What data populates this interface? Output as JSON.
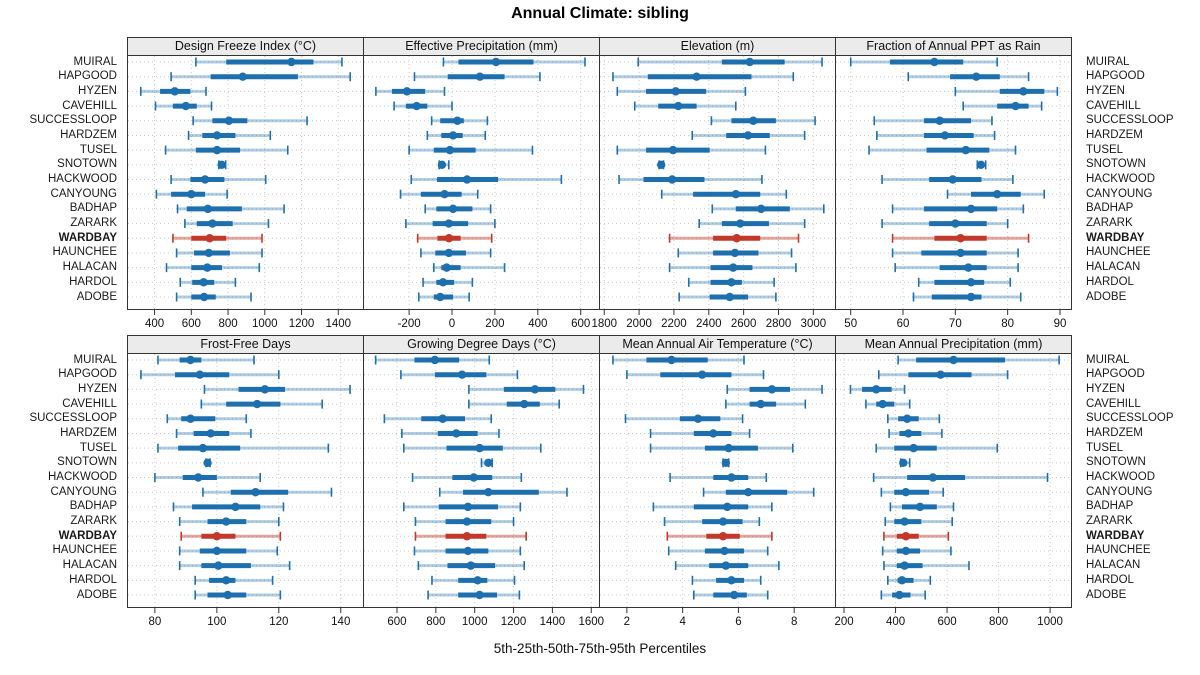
{
  "title": "Annual Climate: sibling",
  "caption": "5th-25th-50th-75th-95th Percentiles",
  "colors": {
    "blue": "#1d6fae",
    "blue_light": "rgba(29,111,174,0.35)",
    "red": "#c0392b",
    "red_light": "rgba(192,57,43,0.45)",
    "grid": "#c8c8c8",
    "panel_border": "#333333",
    "header_bg": "#ebebeb"
  },
  "chart_data": {
    "type": "table",
    "subtype": "dot-with-percentile-intervals (lattice style, 8 panels)",
    "percentiles": [
      5,
      25,
      50,
      75,
      95
    ],
    "highlight_station": "WARDBAY",
    "highlight_index": 12,
    "stations": [
      "MUIRAL",
      "HAPGOOD",
      "HYZEN",
      "CAVEHILL",
      "SUCCESSLOOP",
      "HARDZEM",
      "TUSEL",
      "SNOTOWN",
      "HACKWOOD",
      "CANYOUNG",
      "BADHAP",
      "ZARARK",
      "WARDBAY",
      "HAUNCHEE",
      "HALACAN",
      "HARDOL",
      "ADOBE"
    ],
    "panels": [
      {
        "title": "Design Freeze Index (°C)",
        "ticks": [
          400,
          600,
          800,
          1000,
          1200,
          1400
        ],
        "domain": [
          250,
          1540
        ],
        "values": [
          [
            625,
            790,
            1145,
            1265,
            1420
          ],
          [
            490,
            705,
            880,
            1180,
            1465
          ],
          [
            325,
            430,
            510,
            595,
            680
          ],
          [
            405,
            500,
            570,
            630,
            710
          ],
          [
            610,
            715,
            805,
            905,
            1230
          ],
          [
            585,
            660,
            740,
            840,
            1030
          ],
          [
            460,
            625,
            740,
            865,
            1125
          ],
          [
            750,
            758,
            765,
            773,
            787
          ],
          [
            490,
            595,
            675,
            780,
            1005
          ],
          [
            410,
            490,
            600,
            675,
            795
          ],
          [
            525,
            575,
            690,
            875,
            1105
          ],
          [
            565,
            630,
            715,
            825,
            1020
          ],
          [
            500,
            600,
            700,
            790,
            985
          ],
          [
            520,
            615,
            695,
            810,
            985
          ],
          [
            465,
            600,
            687,
            767,
            970
          ],
          [
            540,
            605,
            667,
            725,
            840
          ],
          [
            520,
            600,
            670,
            733,
            925
          ]
        ]
      },
      {
        "title": "Effective Precipitation (mm)",
        "ticks": [
          -200,
          0,
          200,
          400,
          600
        ],
        "domain": [
          -415,
          690
        ],
        "values": [
          [
            -40,
            30,
            205,
            380,
            620
          ],
          [
            -175,
            -20,
            130,
            245,
            410
          ],
          [
            -355,
            -280,
            -210,
            -125,
            -35
          ],
          [
            -270,
            -215,
            -165,
            -115,
            0
          ],
          [
            -95,
            -55,
            25,
            55,
            165
          ],
          [
            -115,
            -50,
            5,
            50,
            155
          ],
          [
            -200,
            -85,
            -10,
            110,
            375
          ],
          [
            -60,
            -53,
            -47,
            -40,
            -15
          ],
          [
            -190,
            -70,
            70,
            215,
            510
          ],
          [
            -240,
            -145,
            -35,
            45,
            120
          ],
          [
            -125,
            -73,
            5,
            95,
            180
          ],
          [
            -215,
            -90,
            -15,
            75,
            200
          ],
          [
            -160,
            -68,
            -14,
            40,
            185
          ],
          [
            -145,
            -78,
            -15,
            65,
            180
          ],
          [
            -85,
            -50,
            -25,
            40,
            245
          ],
          [
            -135,
            -73,
            -42,
            10,
            95
          ],
          [
            -155,
            -85,
            -55,
            5,
            80
          ]
        ]
      },
      {
        "title": "Elevation (m)",
        "ticks": [
          1800,
          2000,
          2200,
          2400,
          2600,
          2800,
          3000
        ],
        "domain": [
          1770,
          3130
        ],
        "values": [
          [
            1995,
            2475,
            2635,
            2835,
            3050
          ],
          [
            1850,
            2050,
            2330,
            2645,
            2885
          ],
          [
            1875,
            2040,
            2210,
            2385,
            2610
          ],
          [
            1975,
            2110,
            2225,
            2330,
            2555
          ],
          [
            2415,
            2530,
            2655,
            2785,
            3010
          ],
          [
            2305,
            2500,
            2625,
            2750,
            2950
          ],
          [
            1875,
            2040,
            2195,
            2405,
            2725
          ],
          [
            2115,
            2121,
            2127,
            2133,
            2140
          ],
          [
            1885,
            2025,
            2190,
            2375,
            2705
          ],
          [
            2130,
            2310,
            2555,
            2695,
            2845
          ],
          [
            2420,
            2555,
            2700,
            2865,
            3060
          ],
          [
            2345,
            2475,
            2580,
            2745,
            2950
          ],
          [
            2175,
            2425,
            2560,
            2695,
            2915
          ],
          [
            2225,
            2425,
            2550,
            2685,
            2875
          ],
          [
            2175,
            2410,
            2540,
            2650,
            2900
          ],
          [
            2285,
            2410,
            2530,
            2590,
            2775
          ],
          [
            2230,
            2405,
            2520,
            2625,
            2785
          ]
        ]
      },
      {
        "title": "Fraction of Annual PPT as Rain",
        "ticks": [
          50,
          60,
          70,
          80,
          90
        ],
        "domain": [
          47,
          92.3
        ],
        "values": [
          [
            50,
            57.5,
            66,
            71.5,
            78
          ],
          [
            61,
            69,
            74,
            78.5,
            84
          ],
          [
            70,
            78.5,
            83,
            87,
            89.5
          ],
          [
            71.5,
            78,
            81.5,
            84,
            86.5
          ],
          [
            54.5,
            64,
            67,
            73,
            77
          ],
          [
            55,
            64,
            68,
            73.5,
            77.5
          ],
          [
            53.5,
            64.5,
            72,
            76.5,
            81.5
          ],
          [
            74.2,
            74.6,
            74.9,
            75.3,
            75.8
          ],
          [
            56,
            65,
            69.5,
            75,
            81
          ],
          [
            68.5,
            73,
            78,
            82.5,
            87
          ],
          [
            58,
            64,
            73,
            78,
            83
          ],
          [
            56,
            65,
            70,
            76,
            80
          ],
          [
            58,
            66,
            71,
            76,
            84
          ],
          [
            58,
            63.5,
            71,
            76,
            82
          ],
          [
            58.5,
            67,
            72.5,
            76,
            82
          ],
          [
            63,
            66,
            73,
            75.5,
            80.5
          ],
          [
            62,
            65.5,
            73,
            75,
            82.5
          ]
        ]
      },
      {
        "title": "Frost-Free Days",
        "ticks": [
          80,
          100,
          120,
          140
        ],
        "domain": [
          71,
          147.5
        ],
        "values": [
          [
            81,
            88,
            91.5,
            95,
            112
          ],
          [
            75.5,
            86.5,
            94.5,
            104,
            120
          ],
          [
            96,
            107,
            115.5,
            122,
            143
          ],
          [
            95,
            103,
            113,
            120.5,
            134
          ],
          [
            84,
            88.5,
            91.5,
            99.5,
            109.5
          ],
          [
            87,
            92.5,
            98,
            104,
            111
          ],
          [
            81,
            87.5,
            95.5,
            107.5,
            136
          ],
          [
            96.5,
            96.7,
            97,
            97.3,
            97.8
          ],
          [
            80,
            89,
            94,
            100,
            114
          ],
          [
            95.5,
            104.5,
            112.5,
            123,
            137
          ],
          [
            86,
            92,
            106,
            114,
            121.5
          ],
          [
            88,
            97,
            103,
            109.5,
            120
          ],
          [
            88.5,
            95,
            100,
            106,
            120.5
          ],
          [
            88,
            94.5,
            100,
            109.5,
            119.5
          ],
          [
            88,
            95,
            100.5,
            111,
            123.5
          ],
          [
            93,
            97.5,
            103,
            106,
            118
          ],
          [
            93,
            97,
            103.5,
            109.5,
            120.5
          ]
        ]
      },
      {
        "title": "Growing Degree Days (°C)",
        "ticks": [
          600,
          800,
          1000,
          1200,
          1400,
          1600
        ],
        "domain": [
          425,
          1645
        ],
        "values": [
          [
            490,
            690,
            795,
            920,
            1075
          ],
          [
            620,
            795,
            935,
            1060,
            1220
          ],
          [
            970,
            1150,
            1310,
            1415,
            1560
          ],
          [
            970,
            1165,
            1255,
            1335,
            1435
          ],
          [
            535,
            725,
            835,
            950,
            1085
          ],
          [
            625,
            810,
            905,
            1015,
            1125
          ],
          [
            635,
            855,
            1025,
            1145,
            1340
          ],
          [
            1035,
            1055,
            1070,
            1080,
            1090
          ],
          [
            680,
            885,
            995,
            1090,
            1240
          ],
          [
            820,
            940,
            1070,
            1330,
            1475
          ],
          [
            635,
            815,
            965,
            1120,
            1235
          ],
          [
            695,
            850,
            960,
            1085,
            1200
          ],
          [
            695,
            850,
            960,
            1060,
            1265
          ],
          [
            690,
            850,
            965,
            1070,
            1235
          ],
          [
            710,
            860,
            980,
            1105,
            1255
          ],
          [
            780,
            915,
            1015,
            1065,
            1205
          ],
          [
            760,
            915,
            1025,
            1115,
            1230
          ]
        ]
      },
      {
        "title": "Mean Annual Air Temperature (°C)",
        "ticks": [
          2,
          4,
          6,
          8
        ],
        "domain": [
          1.0,
          9.5
        ],
        "values": [
          [
            1.5,
            2.7,
            3.6,
            4.9,
            6.2
          ],
          [
            2.0,
            3.2,
            4.7,
            5.75,
            6.9
          ],
          [
            5.6,
            6.4,
            7.2,
            7.85,
            9.0
          ],
          [
            5.55,
            6.4,
            6.8,
            7.35,
            8.4
          ],
          [
            1.95,
            3.9,
            4.55,
            5.35,
            6.15
          ],
          [
            2.85,
            4.4,
            5.1,
            5.75,
            6.4
          ],
          [
            2.85,
            4.8,
            5.65,
            6.7,
            7.95
          ],
          [
            5.45,
            5.5,
            5.55,
            5.6,
            5.65
          ],
          [
            3.55,
            5.1,
            5.75,
            6.35,
            7.0
          ],
          [
            4.75,
            5.55,
            6.35,
            7.75,
            8.7
          ],
          [
            2.95,
            4.4,
            5.6,
            6.35,
            7.2
          ],
          [
            3.35,
            4.7,
            5.45,
            6.15,
            6.75
          ],
          [
            3.45,
            4.85,
            5.45,
            6.05,
            7.2
          ],
          [
            3.5,
            4.8,
            5.5,
            6.2,
            7.05
          ],
          [
            3.75,
            4.95,
            5.55,
            6.35,
            7.45
          ],
          [
            4.35,
            5.2,
            5.75,
            6.2,
            6.8
          ],
          [
            4.4,
            5.1,
            5.85,
            6.3,
            7.05
          ]
        ]
      },
      {
        "title": "Mean Annual Precipitation (mm)",
        "ticks": [
          200,
          400,
          600,
          800,
          1000
        ],
        "domain": [
          165,
          1085
        ],
        "values": [
          [
            410,
            480,
            625,
            825,
            1035
          ],
          [
            335,
            450,
            575,
            695,
            835
          ],
          [
            225,
            270,
            325,
            385,
            435
          ],
          [
            285,
            325,
            350,
            395,
            455
          ],
          [
            370,
            410,
            445,
            490,
            570
          ],
          [
            375,
            415,
            450,
            500,
            580
          ],
          [
            325,
            395,
            470,
            560,
            795
          ],
          [
            420,
            426,
            430,
            440,
            455
          ],
          [
            315,
            445,
            545,
            670,
            990
          ],
          [
            345,
            395,
            440,
            530,
            585
          ],
          [
            380,
            425,
            495,
            560,
            625
          ],
          [
            360,
            395,
            435,
            500,
            620
          ],
          [
            355,
            405,
            440,
            490,
            605
          ],
          [
            350,
            405,
            440,
            495,
            615
          ],
          [
            355,
            405,
            435,
            505,
            685
          ],
          [
            370,
            408,
            425,
            470,
            535
          ],
          [
            345,
            387,
            415,
            458,
            515
          ]
        ]
      }
    ]
  }
}
